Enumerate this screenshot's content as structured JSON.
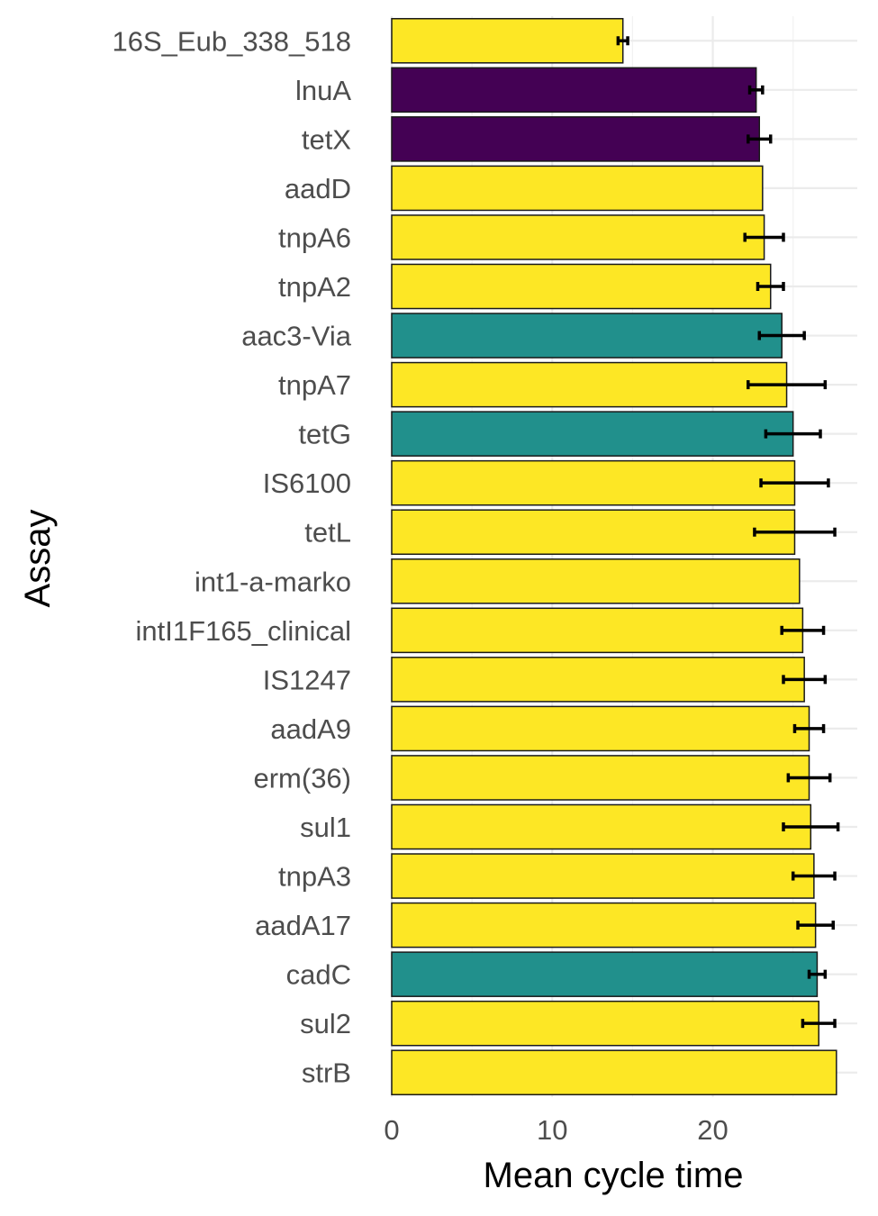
{
  "chart_data": {
    "type": "bar",
    "orientation": "horizontal",
    "xlabel": "Mean cycle time",
    "ylabel": "Assay",
    "xlim": [
      0,
      29
    ],
    "x_ticks": [
      0,
      10,
      20
    ],
    "grid": true,
    "legend": "none",
    "categories": [
      "16S_Eub_338_518",
      "lnuA",
      "tetX",
      "aadD",
      "tnpA6",
      "tnpA2",
      "aac3-Via",
      "tnpA7",
      "tetG",
      "IS6100",
      "tetL",
      "int1-a-marko",
      "intI1F165_clinical",
      "IS1247",
      "aadA9",
      "erm(36)",
      "sul1",
      "tnpA3",
      "aadA17",
      "cadC",
      "sul2",
      "strB"
    ],
    "values": [
      14.4,
      22.7,
      22.9,
      23.1,
      23.2,
      23.6,
      24.3,
      24.6,
      25.0,
      25.1,
      25.1,
      25.4,
      25.6,
      25.7,
      26.0,
      26.0,
      26.1,
      26.3,
      26.4,
      26.5,
      26.6,
      27.7
    ],
    "errors": [
      0.3,
      0.4,
      0.7,
      null,
      1.2,
      0.8,
      1.4,
      2.4,
      1.7,
      2.1,
      2.5,
      null,
      1.3,
      1.3,
      0.9,
      1.3,
      1.7,
      1.3,
      1.1,
      0.5,
      1.0,
      null
    ],
    "fill_colors": [
      "#FDE725",
      "#440154",
      "#440154",
      "#FDE725",
      "#FDE725",
      "#FDE725",
      "#21908C",
      "#FDE725",
      "#21908C",
      "#FDE725",
      "#FDE725",
      "#FDE725",
      "#FDE725",
      "#FDE725",
      "#FDE725",
      "#FDE725",
      "#FDE725",
      "#FDE725",
      "#FDE725",
      "#21908C",
      "#FDE725",
      "#FDE725"
    ]
  }
}
